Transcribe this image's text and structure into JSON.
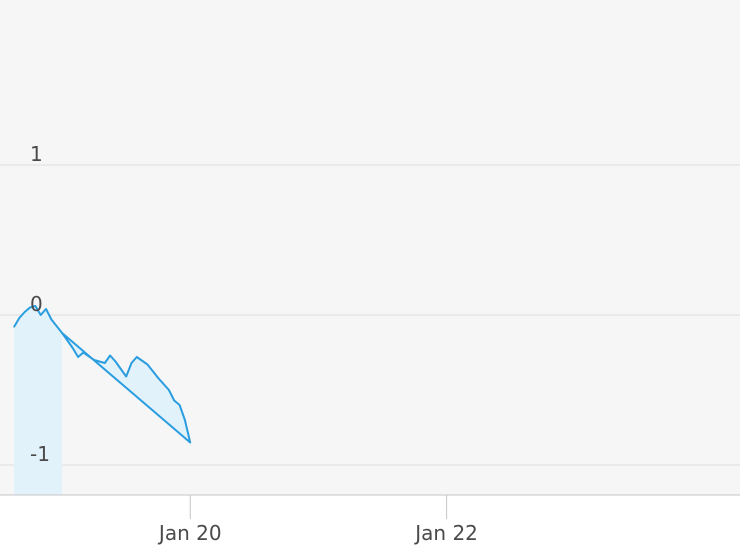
{
  "chart_data": {
    "type": "area",
    "title": "",
    "xlabel": "",
    "ylabel": "",
    "grid": true,
    "ylim": [
      -1.2,
      2.1
    ],
    "xlim": [
      "Jan 18 15:00",
      "Jan 24 06:00"
    ],
    "x_ticks": [
      {
        "label": "Jan 20",
        "value": "Jan 20"
      },
      {
        "label": "Jan 22",
        "value": "Jan 22"
      }
    ],
    "y_ticks": [
      {
        "label": "1",
        "value": 1
      },
      {
        "label": "0",
        "value": 0
      },
      {
        "label": "-1",
        "value": -1
      }
    ],
    "colors": {
      "line": "#2a9de0",
      "fill": "#e2f2fb",
      "plot_bg": "#f6f6f6",
      "grid": "#dedede",
      "axis": "#c4c4c4"
    },
    "series": [
      {
        "points": [
          [
            "Jan 18 15:00",
            -0.08
          ],
          [
            "Jan 18 16:00",
            -0.02
          ],
          [
            "Jan 18 17:00",
            0.02
          ],
          [
            "Jan 18 18:00",
            0.05
          ],
          [
            "Jan 18 19:00",
            0.06
          ],
          [
            "Jan 18 20:00",
            0.0
          ],
          [
            "Jan 18 21:00",
            0.04
          ],
          [
            "Jan 18 22:00",
            -0.03
          ],
          [
            "Jan 19 00:00",
            -0.12
          ],
          [
            "Jan 19 02:00",
            -0.22
          ],
          [
            "Jan 19 03:00",
            -0.28
          ],
          [
            "Jan 19 04:00",
            -0.25
          ],
          [
            "Jan 19 06:00",
            -0.3
          ],
          [
            "Jan 19 08:00",
            -0.32
          ],
          [
            "Jan 19 09:00",
            -0.27
          ],
          [
            "Jan 19 10:00",
            -0.31
          ],
          [
            "Jan 19 11:00",
            -0.36
          ],
          [
            "Jan 19 12:00",
            -0.41
          ],
          [
            "Jan 19 13:00",
            -0.32
          ],
          [
            "Jan 19 14:00",
            -0.28
          ],
          [
            "Jan 19 16:00",
            -0.33
          ],
          [
            "Jan 19 18:00",
            -0.42
          ],
          [
            "Jan 19 20:00",
            -0.5
          ],
          [
            "Jan 19 21:00",
            -0.57
          ],
          [
            "Jan 19 22:00",
            -0.6
          ],
          [
            "Jan 19 23:00",
            -0.7
          ],
          [
            "Jan 20 00:00",
            -0.85
          ],
          [
            "Jan 19 00:00",
            -0.12
          ]
        ]
      }
    ]
  }
}
